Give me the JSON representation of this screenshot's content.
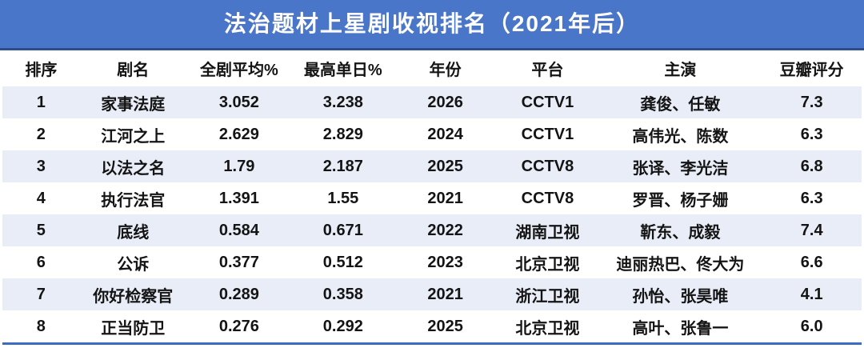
{
  "chart_data": {
    "type": "table",
    "title": "法治题材上星剧收视排名（2021年后）",
    "columns": [
      "排序",
      "剧名",
      "全剧平均%",
      "最高单日%",
      "年份",
      "平台",
      "主演",
      "豆瓣评分"
    ],
    "rows": [
      [
        "1",
        "家事法庭",
        "3.052",
        "3.238",
        "2026",
        "CCTV1",
        "龚俊、任敏",
        "7.3"
      ],
      [
        "2",
        "江河之上",
        "2.629",
        "2.829",
        "2024",
        "CCTV1",
        "高伟光、陈数",
        "6.3"
      ],
      [
        "3",
        "以法之名",
        "1.79",
        "2.187",
        "2025",
        "CCTV8",
        "张译、李光洁",
        "6.8"
      ],
      [
        "4",
        "执行法官",
        "1.391",
        "1.55",
        "2021",
        "CCTV8",
        "罗晋、杨子姗",
        "6.3"
      ],
      [
        "5",
        "底线",
        "0.584",
        "0.671",
        "2022",
        "湖南卫视",
        "靳东、成毅",
        "7.4"
      ],
      [
        "6",
        "公诉",
        "0.377",
        "0.512",
        "2023",
        "北京卫视",
        "迪丽热巴、佟大为",
        "6.6"
      ],
      [
        "7",
        "你好检察官",
        "0.289",
        "0.358",
        "2021",
        "浙江卫视",
        "孙怡、张昊唯",
        "4.1"
      ],
      [
        "8",
        "正当防卫",
        "0.276",
        "0.292",
        "2025",
        "北京卫视",
        "高叶、张鲁一",
        "6.0"
      ]
    ],
    "layout": {
      "striped_rows": true,
      "stripe_order": "odd-rows-shaded",
      "alignment": "center"
    }
  },
  "colors": {
    "banner": "#4a76c9",
    "banner_underline": "#2c4e8f",
    "row_alt": "#e9edf7",
    "row_white": "#ffffff",
    "bottom_border": "#3b6cc0",
    "text": "#141414",
    "title_text": "#ffffff"
  }
}
